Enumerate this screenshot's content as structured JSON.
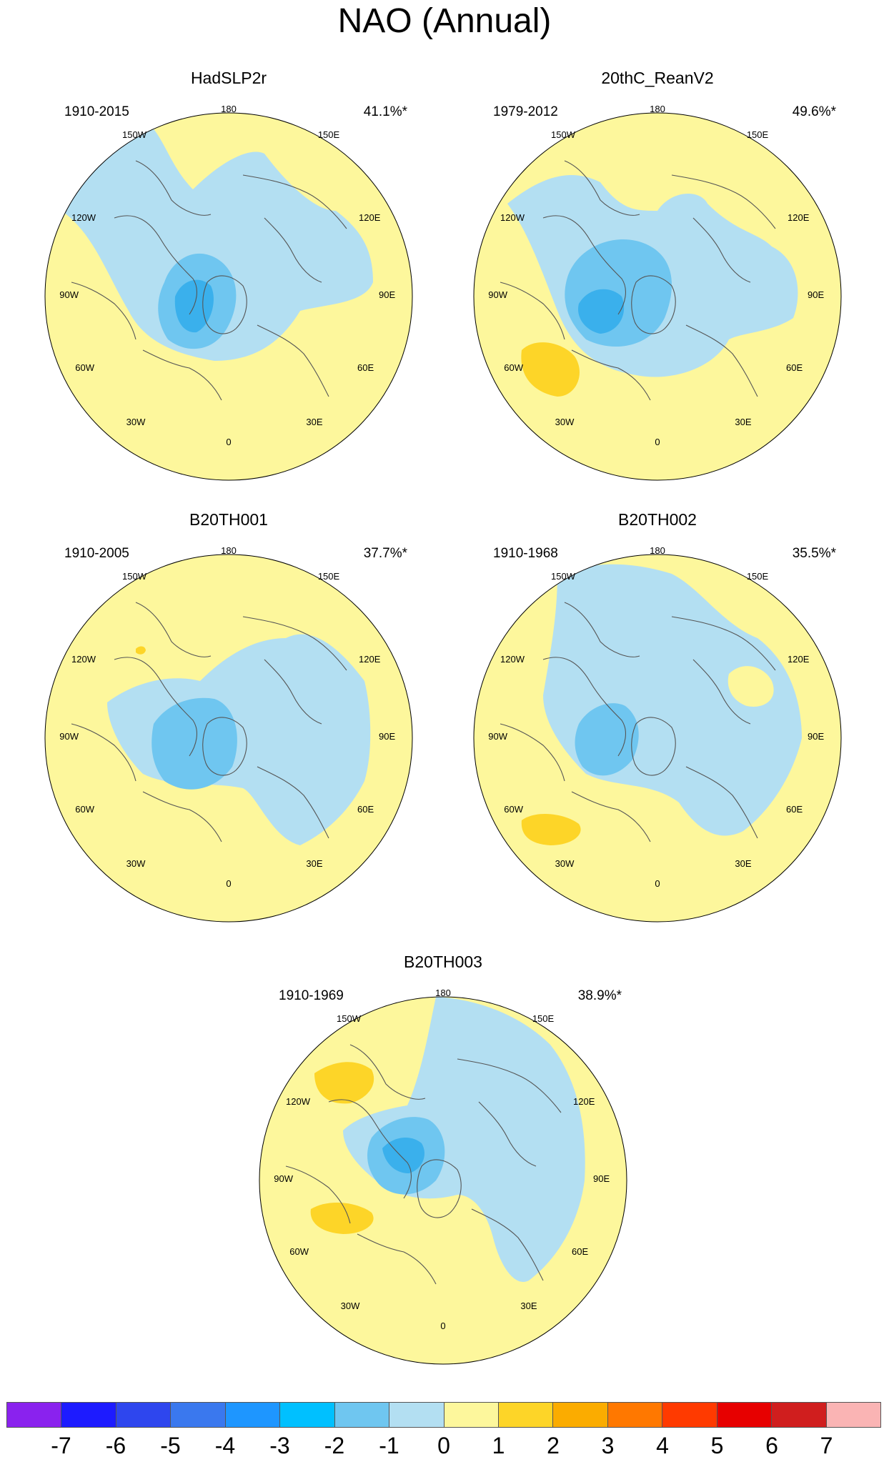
{
  "title": "NAO (Annual)",
  "panels": [
    {
      "title": "HadSLP2r",
      "period": "1910-2015",
      "variance": "41.1%*"
    },
    {
      "title": "20thC_ReanV2",
      "period": "1979-2012",
      "variance": "49.6%*"
    },
    {
      "title": "B20TH001",
      "period": "1910-2005",
      "variance": "37.7%*"
    },
    {
      "title": "B20TH002",
      "period": "1910-1968",
      "variance": "35.5%*"
    },
    {
      "title": "B20TH003",
      "period": "1910-1969",
      "variance": "38.9%*"
    }
  ],
  "longitude_labels": [
    "180",
    "150E",
    "120E",
    "90E",
    "60E",
    "30E",
    "0",
    "30W",
    "60W",
    "90W",
    "120W",
    "150W"
  ],
  "colorbar": {
    "labels": [
      "-7",
      "-6",
      "-5",
      "-4",
      "-3",
      "-2",
      "-1",
      "0",
      "1",
      "2",
      "3",
      "4",
      "5",
      "6",
      "7"
    ],
    "colors": [
      "#8a22ee",
      "#1d1bff",
      "#2e46ee",
      "#3a78ee",
      "#1e96ff",
      "#00c0ff",
      "#6fc6f0",
      "#b3dff2",
      "#fdf79c",
      "#fdd528",
      "#fbac00",
      "#ff7800",
      "#ff3a00",
      "#e70000",
      "#d01e1e",
      "#fab4b4"
    ]
  },
  "colors": {
    "land_outline": "#555555",
    "positive_0_1": "#fdf79c",
    "negative_0_1": "#b3dff2",
    "negative_1_2": "#6fc6f0",
    "negative_2_3": "#3ab0ec",
    "negative_3_4": "#1e96ff",
    "positive_1_2": "#fdd528"
  }
}
